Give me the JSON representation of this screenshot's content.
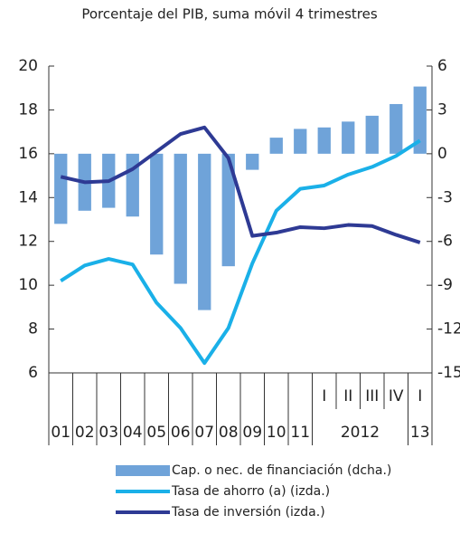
{
  "chart_data": {
    "type": "bar-line",
    "subtitle": "Porcentaje del PIB, suma móvil 4 trimestres",
    "categories": [
      "01",
      "02",
      "03",
      "04",
      "05",
      "06",
      "07",
      "08",
      "09",
      "10",
      "11",
      "I",
      "II",
      "III",
      "IV",
      "I"
    ],
    "category_groups": [
      "2012",
      "13"
    ],
    "ylim": [
      6,
      20
    ],
    "yticks": [
      6,
      8,
      10,
      12,
      14,
      16,
      18,
      20
    ],
    "y2lim": [
      -15,
      6
    ],
    "y2ticks": [
      -15,
      -12,
      -9,
      -6,
      -3,
      0,
      3,
      6
    ],
    "series": [
      {
        "name": "Cap. o nec. de financiación (dcha.)",
        "color": "#6fa3d9",
        "axis": "y2",
        "kind": "bar",
        "values": [
          -4.8,
          -3.9,
          -3.7,
          -4.3,
          -6.9,
          -8.9,
          -10.7,
          -7.7,
          -1.1,
          1.1,
          1.7,
          1.8,
          2.2,
          2.6,
          3.4,
          4.6
        ]
      },
      {
        "name": "Tasa de ahorro (a) (izda.)",
        "color": "#1ab0e8",
        "kind": "line",
        "values": [
          10.2,
          10.9,
          11.2,
          10.95,
          9.2,
          8.05,
          6.45,
          8.05,
          11.0,
          13.4,
          14.4,
          14.55,
          15.05,
          15.4,
          15.9,
          16.6
        ]
      },
      {
        "name": "Tasa de inversión (izda.)",
        "color": "#2e3a94",
        "kind": "line",
        "values": [
          14.95,
          14.7,
          14.75,
          15.3,
          16.1,
          16.9,
          17.2,
          15.8,
          12.25,
          12.4,
          12.65,
          12.6,
          12.75,
          12.7,
          12.3,
          11.95
        ]
      }
    ]
  }
}
